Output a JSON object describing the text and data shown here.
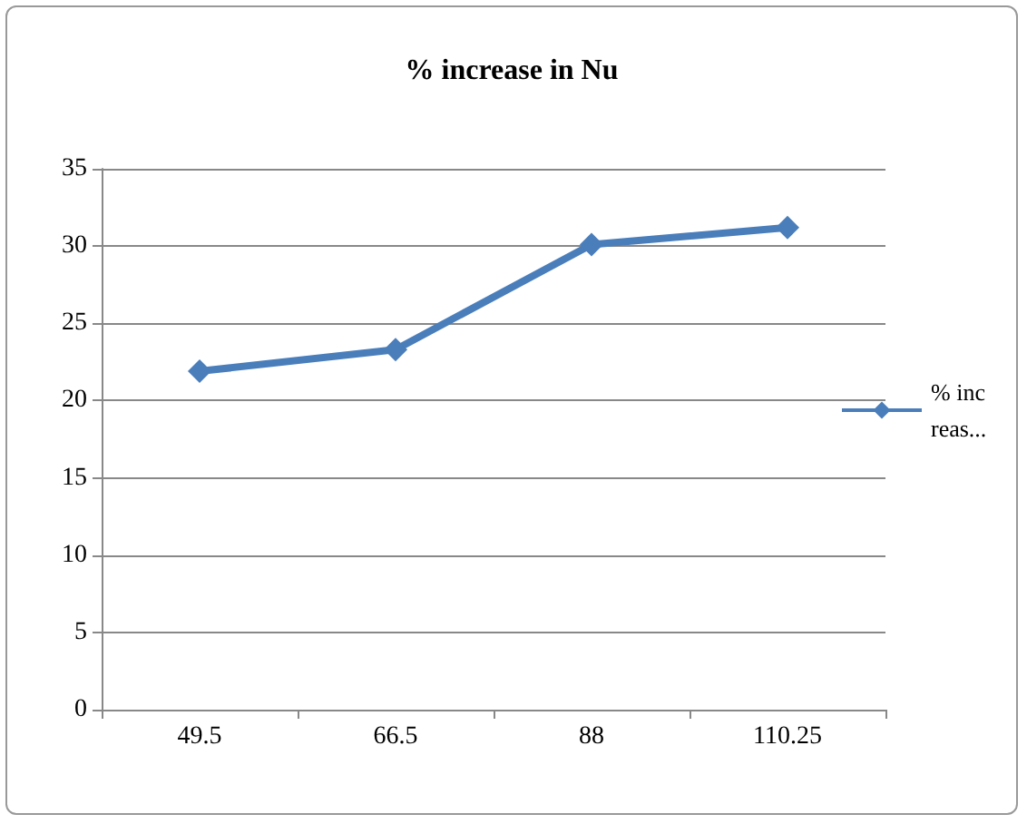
{
  "chart_data": {
    "type": "line",
    "title": "% increase in Nu",
    "categories": [
      "49.5",
      "66.5",
      "88",
      "110.25"
    ],
    "series": [
      {
        "name": "% increas...",
        "color": "#4a7ebb",
        "values": [
          21.9,
          23.3,
          30.1,
          31.2
        ]
      }
    ],
    "ylim": [
      0,
      35
    ],
    "yticks": [
      0,
      5,
      10,
      15,
      20,
      25,
      30,
      35
    ],
    "grid": "y",
    "legend": "right",
    "marker": "diamond",
    "line_style": "solid"
  }
}
